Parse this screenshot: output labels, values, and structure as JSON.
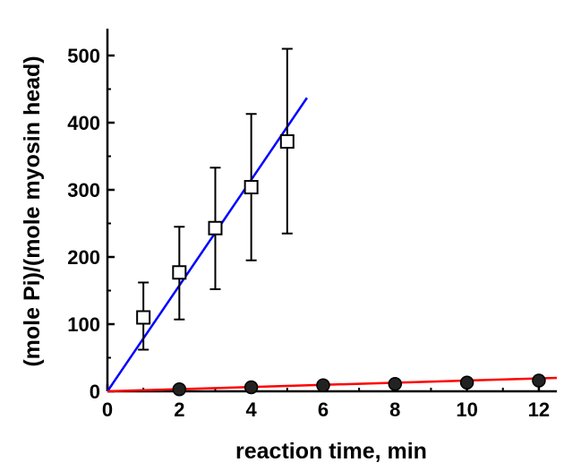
{
  "chart_data": {
    "type": "scatter",
    "title": "",
    "xlabel": "reaction time, min",
    "ylabel": "(mole Pi)/(mole myosin head)",
    "xlim": [
      0,
      12.5
    ],
    "ylim": [
      0,
      540
    ],
    "xticks": [
      0,
      2,
      4,
      6,
      8,
      10,
      12
    ],
    "yticks": [
      0,
      100,
      200,
      300,
      400,
      500
    ],
    "grid": false,
    "series": [
      {
        "marker": "open-square",
        "line_color": "#0000ff",
        "x": [
          1,
          2,
          3,
          4,
          5
        ],
        "y": [
          110,
          177,
          243,
          304,
          372
        ],
        "err_low": [
          62,
          107,
          152,
          195,
          235
        ],
        "err_high": [
          162,
          245,
          333,
          413,
          510
        ],
        "fit_x": [
          0,
          5.55
        ],
        "fit_y": [
          0,
          437
        ]
      },
      {
        "marker": "circle",
        "line_color": "#ff0000",
        "x": [
          2,
          4,
          6,
          8,
          10,
          12
        ],
        "y": [
          3,
          6,
          9,
          11,
          13,
          16
        ],
        "fit_x": [
          0,
          12.5
        ],
        "fit_y": [
          0,
          20
        ]
      }
    ]
  }
}
